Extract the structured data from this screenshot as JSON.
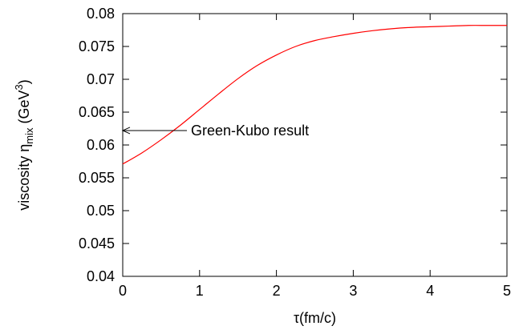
{
  "chart_data": {
    "type": "line",
    "xlabel": "τ(fm/c)",
    "ylabel_main": "viscosity η",
    "ylabel_sub": "mix",
    "ylabel_unit_open": " (GeV",
    "ylabel_unit_sup": "3",
    "ylabel_unit_close": ")",
    "xlim": [
      0,
      5
    ],
    "ylim": [
      0.04,
      0.08
    ],
    "xticks": [
      0,
      1,
      2,
      3,
      4,
      5
    ],
    "xtick_labels": [
      "0",
      "1",
      "2",
      "3",
      "4",
      "5"
    ],
    "yticks": [
      0.04,
      0.045,
      0.05,
      0.055,
      0.06,
      0.065,
      0.07,
      0.075,
      0.08
    ],
    "ytick_labels": [
      "0.04",
      "0.045",
      "0.05",
      "0.055",
      "0.06",
      "0.065",
      "0.07",
      "0.075",
      "0.08"
    ],
    "grid": false,
    "series": [
      {
        "color": "#ff0000",
        "x": [
          0,
          0.25,
          0.5,
          0.75,
          1.0,
          1.25,
          1.5,
          1.75,
          2.0,
          2.25,
          2.5,
          2.75,
          3.0,
          3.25,
          3.5,
          3.75,
          4.0,
          4.25,
          4.5,
          4.75,
          5.0
        ],
        "y": [
          0.0571,
          0.0588,
          0.0608,
          0.063,
          0.0654,
          0.0678,
          0.0701,
          0.0721,
          0.0737,
          0.075,
          0.0759,
          0.0765,
          0.077,
          0.0774,
          0.0777,
          0.0779,
          0.078,
          0.0781,
          0.0782,
          0.0782,
          0.0782
        ]
      }
    ],
    "annotation": {
      "text": "Green-Kubo result",
      "arrow_x": 0,
      "arrow_y": 0.0622
    }
  }
}
